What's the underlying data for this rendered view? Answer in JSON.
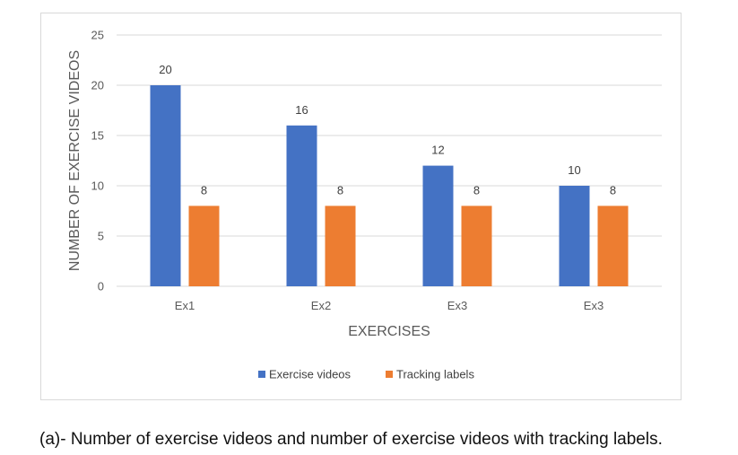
{
  "chart_data": {
    "type": "bar",
    "title": "",
    "xlabel": "EXERCISES",
    "ylabel": "NUMBER OF EXERCISE  VIDEOS",
    "categories": [
      "Ex1",
      "Ex2",
      "Ex3",
      "Ex3"
    ],
    "series": [
      {
        "name": "Exercise videos",
        "values": [
          20,
          16,
          12,
          10
        ],
        "color": "#4472C4"
      },
      {
        "name": "Tracking labels",
        "values": [
          8,
          8,
          8,
          8
        ],
        "color": "#ED7D31"
      }
    ],
    "ylim": [
      0,
      25
    ],
    "yticks": [
      0,
      5,
      10,
      15,
      20,
      25
    ],
    "grid": true,
    "legend_position": "bottom",
    "data_labels": true
  },
  "caption": "(a)- Number of exercise videos and number of exercise videos with tracking labels."
}
